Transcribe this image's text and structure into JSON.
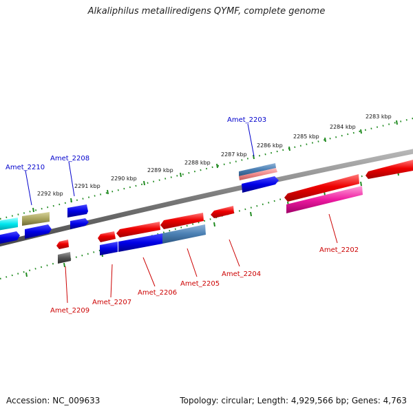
{
  "title": "Alkaliphilus metalliredigens QYMF, complete genome",
  "footer": {
    "accession": "Accession: NC_009633",
    "summary": "Topology: circular; Length: 4,929,566 bp; Genes: 4,763"
  },
  "colors": {
    "backbone": "#808080",
    "tick": "#1f8a1f",
    "forward_label": "#0000cc",
    "reverse_label": "#cc0000"
  },
  "scale_labels": [
    "2292 kbp",
    "2291 kbp",
    "2290 kbp",
    "2289 kbp",
    "2288 kbp",
    "2287 kbp",
    "2286 kbp",
    "2285 kbp",
    "2284 kbp",
    "2283 kbp"
  ],
  "gene_labels": {
    "forward": [
      "Amet_2210",
      "Amet_2208",
      "Amet_2203"
    ],
    "reverse": [
      "Amet_2209",
      "Amet_2207",
      "Amet_2206",
      "Amet_2205",
      "Amet_2204",
      "Amet_2202"
    ]
  },
  "feature_colors": [
    "cyan",
    "khaki",
    "blue",
    "red",
    "dark-gray",
    "steel-blue",
    "salmon",
    "pink-magenta"
  ]
}
